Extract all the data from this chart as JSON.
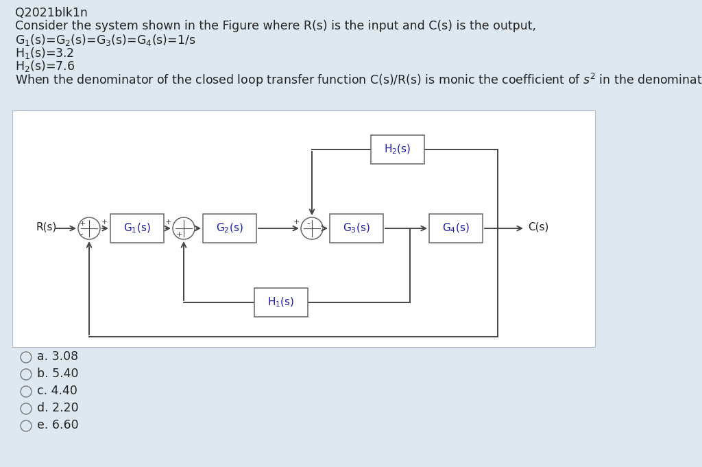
{
  "bg_color": "#dde8f0",
  "diagram_bg": "#ffffff",
  "title_line1": "Q2021blk1n",
  "title_line2": "Consider the system shown in the Figure where R(s) is the input and C(s) is the output,",
  "title_line3_math": "G$_1$(s)=G$_2$(s)=G$_3$(s)=G$_4$(s)=1/s",
  "title_line4_math": "H$_1$(s)=3.2",
  "title_line5_math": "H$_2$(s)=7.6",
  "title_line6a": "When the denominator of the closed loop transfer function C(s)/R(s) is monic the coefficient of ",
  "title_line6b": " in the denominator is",
  "options": [
    "a. 3.08",
    "b. 5.40",
    "c. 4.40",
    "d. 2.20",
    "e. 6.60"
  ],
  "line_color": "#444444",
  "box_edge_color": "#666666",
  "text_color": "#1a1aaa",
  "label_color": "#222222",
  "option_color": "#222222"
}
